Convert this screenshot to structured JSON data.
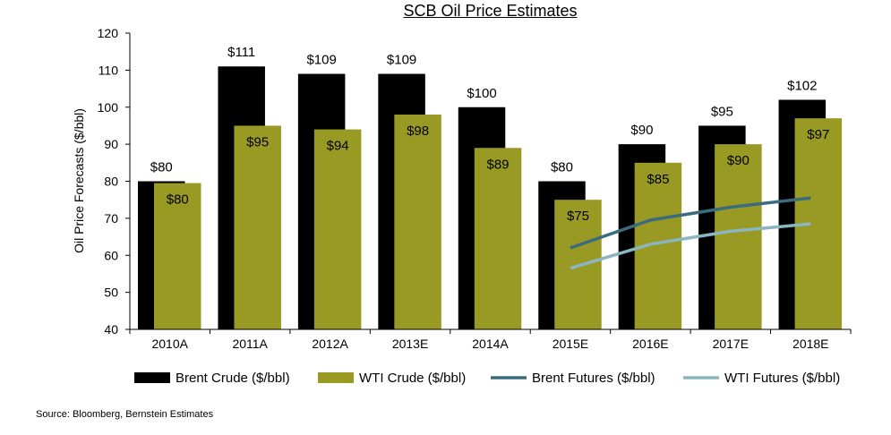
{
  "chart_data": {
    "type": "bar",
    "title": "SCB Oil Price Estimates",
    "xlabel": "",
    "ylabel": "Oil Price Forecasts ($/bbl)",
    "ylim": [
      40,
      120
    ],
    "yticks": [
      40,
      50,
      60,
      70,
      80,
      90,
      100,
      110,
      120
    ],
    "grid": false,
    "legend": "bottom",
    "categories": [
      "2010A",
      "2011A",
      "2012A",
      "2013E",
      "2014A",
      "2015E",
      "2016E",
      "2017E",
      "2018E"
    ],
    "series": [
      {
        "name": "Brent Crude ($/bbl)",
        "type": "bar",
        "color": "#000000",
        "values": [
          80,
          111,
          109,
          109,
          100,
          80,
          90,
          95,
          102
        ],
        "labels": [
          "$80",
          "$111",
          "$109",
          "$109",
          "$100",
          "$80",
          "$90",
          "$95",
          "$102"
        ]
      },
      {
        "name": "WTI Crude ($/bbl)",
        "type": "bar",
        "color": "#999a24",
        "values": [
          79.5,
          95,
          94,
          98,
          89,
          75,
          85,
          90,
          97
        ],
        "labels": [
          "$80",
          "$95",
          "$94",
          "$98",
          "$89",
          "$75",
          "$85",
          "$90",
          "$97"
        ]
      },
      {
        "name": "Brent Futures ($/bbl)",
        "type": "line",
        "color": "#3b6b7f",
        "x": [
          "2015E",
          "2016E",
          "2017E",
          "2018E"
        ],
        "values": [
          62,
          69.5,
          73,
          75.5
        ]
      },
      {
        "name": "WTI Futures ($/bbl)",
        "type": "line",
        "color": "#8ab5c1",
        "x": [
          "2015E",
          "2016E",
          "2017E",
          "2018E"
        ],
        "values": [
          56.5,
          63,
          66.5,
          68.5
        ]
      }
    ]
  },
  "source": "Source: Bloomberg, Bernstein Estimates"
}
